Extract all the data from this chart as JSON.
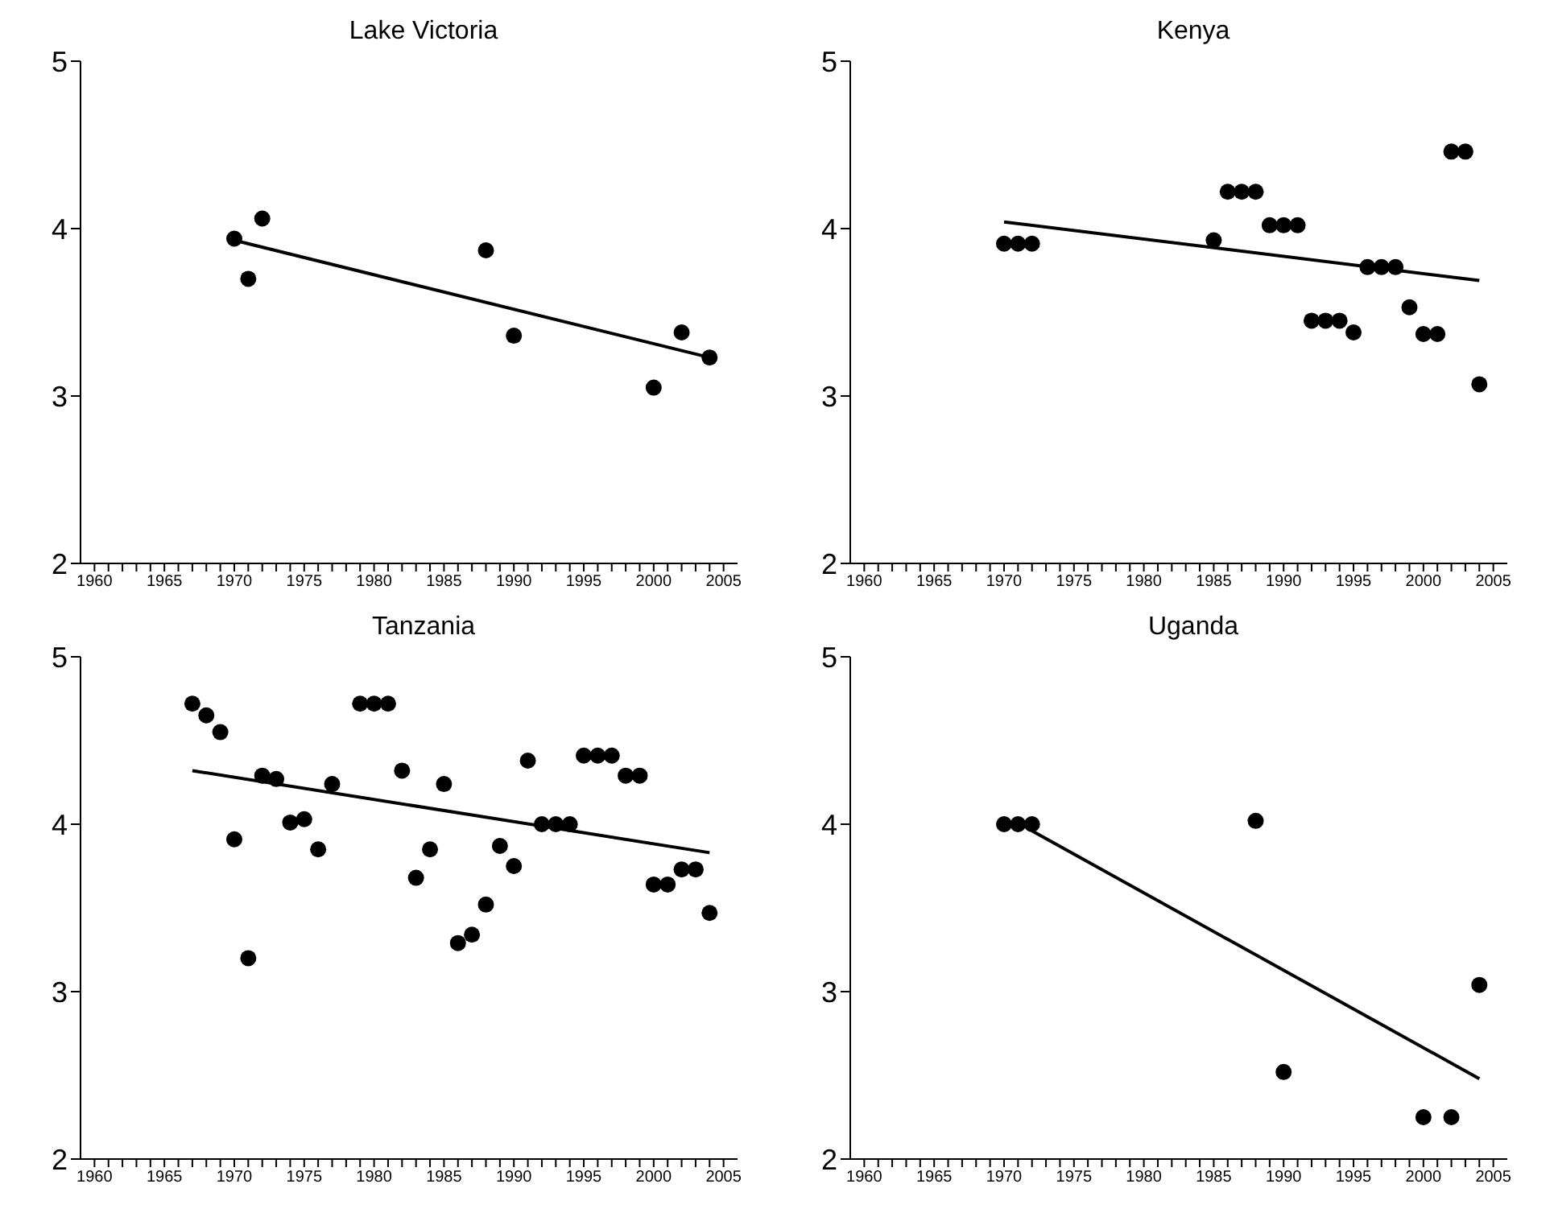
{
  "chart_data": [
    {
      "type": "scatter",
      "title": "Lake Victoria",
      "xlim": [
        1959,
        2006
      ],
      "ylim": [
        2,
        5
      ],
      "yticks": [
        2,
        3,
        4,
        5
      ],
      "xticks": [
        1960,
        {
          "value": 1961,
          "label": null
        },
        {
          "value": 1962,
          "label": null
        },
        {
          "value": 1963,
          "label": null
        },
        {
          "value": 1964,
          "label": null
        },
        1965,
        {
          "value": 1966,
          "label": null
        },
        {
          "value": 1967,
          "label": null
        },
        {
          "value": 1968,
          "label": null
        },
        {
          "value": 1969,
          "label": null
        },
        1970,
        {
          "value": 1971,
          "label": null
        },
        {
          "value": 1972,
          "label": null
        },
        {
          "value": 1973,
          "label": null
        },
        {
          "value": 1974,
          "label": null
        },
        1975,
        {
          "value": 1976,
          "label": null
        },
        {
          "value": 1977,
          "label": null
        },
        {
          "value": 1978,
          "label": null
        },
        {
          "value": 1979,
          "label": null
        },
        1980,
        {
          "value": 1981,
          "label": null
        },
        {
          "value": 1982,
          "label": null
        },
        {
          "value": 1983,
          "label": null
        },
        {
          "value": 1984,
          "label": null
        },
        1985,
        {
          "value": 1986,
          "label": null
        },
        {
          "value": 1987,
          "label": null
        },
        {
          "value": 1988,
          "label": null
        },
        {
          "value": 1989,
          "label": null
        },
        1990,
        {
          "value": 1991,
          "label": null
        },
        {
          "value": 1992,
          "label": null
        },
        {
          "value": 1993,
          "label": null
        },
        {
          "value": 1994,
          "label": null
        },
        1995,
        {
          "value": 1996,
          "label": null
        },
        {
          "value": 1997,
          "label": null
        },
        {
          "value": 1998,
          "label": null
        },
        {
          "value": 1999,
          "label": null
        },
        2000,
        {
          "value": 2001,
          "label": null
        },
        {
          "value": 2002,
          "label": null
        },
        {
          "value": 2003,
          "label": null
        },
        {
          "value": 2004,
          "label": null
        },
        2005
      ],
      "series": [
        {
          "type": "scatter",
          "marker": "circle",
          "color": "#000000",
          "x": [
            1970,
            1971,
            1972,
            1988,
            1990,
            2000,
            2002,
            2004
          ],
          "values": [
            3.94,
            3.7,
            4.06,
            3.87,
            3.36,
            3.05,
            3.38,
            3.23
          ]
        },
        {
          "type": "line",
          "color": "#000000",
          "x": [
            1970,
            2004
          ],
          "values": [
            3.93,
            3.23
          ]
        }
      ]
    },
    {
      "type": "scatter",
      "title": "Kenya",
      "xlim": [
        1959,
        2006
      ],
      "ylim": [
        2,
        5
      ],
      "yticks": [
        2,
        3,
        4,
        5
      ],
      "xticks": [
        1960,
        {
          "value": 1961,
          "label": null
        },
        {
          "value": 1962,
          "label": null
        },
        {
          "value": 1963,
          "label": null
        },
        {
          "value": 1964,
          "label": null
        },
        1965,
        {
          "value": 1966,
          "label": null
        },
        {
          "value": 1967,
          "label": null
        },
        {
          "value": 1968,
          "label": null
        },
        {
          "value": 1969,
          "label": null
        },
        1970,
        {
          "value": 1971,
          "label": null
        },
        {
          "value": 1972,
          "label": null
        },
        {
          "value": 1973,
          "label": null
        },
        {
          "value": 1974,
          "label": null
        },
        1975,
        {
          "value": 1976,
          "label": null
        },
        {
          "value": 1977,
          "label": null
        },
        {
          "value": 1978,
          "label": null
        },
        {
          "value": 1979,
          "label": null
        },
        1980,
        {
          "value": 1981,
          "label": null
        },
        {
          "value": 1982,
          "label": null
        },
        {
          "value": 1983,
          "label": null
        },
        {
          "value": 1984,
          "label": null
        },
        1985,
        {
          "value": 1986,
          "label": null
        },
        {
          "value": 1987,
          "label": null
        },
        {
          "value": 1988,
          "label": null
        },
        {
          "value": 1989,
          "label": null
        },
        1990,
        {
          "value": 1991,
          "label": null
        },
        {
          "value": 1992,
          "label": null
        },
        {
          "value": 1993,
          "label": null
        },
        {
          "value": 1994,
          "label": null
        },
        1995,
        {
          "value": 1996,
          "label": null
        },
        {
          "value": 1997,
          "label": null
        },
        {
          "value": 1998,
          "label": null
        },
        {
          "value": 1999,
          "label": null
        },
        2000,
        {
          "value": 2001,
          "label": null
        },
        {
          "value": 2002,
          "label": null
        },
        {
          "value": 2003,
          "label": null
        },
        {
          "value": 2004,
          "label": null
        },
        2005
      ],
      "series": [
        {
          "type": "scatter",
          "marker": "circle",
          "color": "#000000",
          "x": [
            1970,
            1971,
            1972,
            1985,
            1986,
            1987,
            1988,
            1989,
            1990,
            1991,
            1992,
            1993,
            1994,
            1995,
            1996,
            1997,
            1998,
            1999,
            2000,
            2001,
            2002,
            2003,
            2004
          ],
          "values": [
            3.91,
            3.91,
            3.91,
            3.93,
            4.22,
            4.22,
            4.22,
            4.02,
            4.02,
            4.02,
            3.45,
            3.45,
            3.45,
            3.38,
            3.77,
            3.77,
            3.77,
            3.53,
            3.37,
            3.37,
            4.46,
            4.46,
            3.07
          ]
        },
        {
          "type": "line",
          "color": "#000000",
          "x": [
            1970,
            2004
          ],
          "values": [
            4.04,
            3.69
          ]
        }
      ]
    },
    {
      "type": "scatter",
      "title": "Tanzania",
      "xlim": [
        1959,
        2006
      ],
      "ylim": [
        2,
        5
      ],
      "yticks": [
        2,
        3,
        4,
        5
      ],
      "xticks": [
        1960,
        {
          "value": 1961,
          "label": null
        },
        {
          "value": 1962,
          "label": null
        },
        {
          "value": 1963,
          "label": null
        },
        {
          "value": 1964,
          "label": null
        },
        1965,
        {
          "value": 1966,
          "label": null
        },
        {
          "value": 1967,
          "label": null
        },
        {
          "value": 1968,
          "label": null
        },
        {
          "value": 1969,
          "label": null
        },
        1970,
        {
          "value": 1971,
          "label": null
        },
        {
          "value": 1972,
          "label": null
        },
        {
          "value": 1973,
          "label": null
        },
        {
          "value": 1974,
          "label": null
        },
        1975,
        {
          "value": 1976,
          "label": null
        },
        {
          "value": 1977,
          "label": null
        },
        {
          "value": 1978,
          "label": null
        },
        {
          "value": 1979,
          "label": null
        },
        1980,
        {
          "value": 1981,
          "label": null
        },
        {
          "value": 1982,
          "label": null
        },
        {
          "value": 1983,
          "label": null
        },
        {
          "value": 1984,
          "label": null
        },
        1985,
        {
          "value": 1986,
          "label": null
        },
        {
          "value": 1987,
          "label": null
        },
        {
          "value": 1988,
          "label": null
        },
        {
          "value": 1989,
          "label": null
        },
        1990,
        {
          "value": 1991,
          "label": null
        },
        {
          "value": 1992,
          "label": null
        },
        {
          "value": 1993,
          "label": null
        },
        {
          "value": 1994,
          "label": null
        },
        1995,
        {
          "value": 1996,
          "label": null
        },
        {
          "value": 1997,
          "label": null
        },
        {
          "value": 1998,
          "label": null
        },
        {
          "value": 1999,
          "label": null
        },
        2000,
        {
          "value": 2001,
          "label": null
        },
        {
          "value": 2002,
          "label": null
        },
        {
          "value": 2003,
          "label": null
        },
        {
          "value": 2004,
          "label": null
        },
        2005
      ],
      "series": [
        {
          "type": "scatter",
          "marker": "circle",
          "color": "#000000",
          "x": [
            1967,
            1968,
            1969,
            1970,
            1971,
            1972,
            1973,
            1974,
            1975,
            1976,
            1977,
            1979,
            1980,
            1981,
            1982,
            1983,
            1984,
            1985,
            1986,
            1987,
            1988,
            1989,
            1990,
            1991,
            1992,
            1993,
            1994,
            1995,
            1996,
            1997,
            1998,
            1999,
            2000,
            2001,
            2002,
            2003,
            2004
          ],
          "values": [
            4.72,
            4.65,
            4.55,
            3.91,
            3.2,
            4.29,
            4.27,
            4.01,
            4.03,
            3.85,
            4.24,
            4.72,
            4.72,
            4.72,
            4.32,
            3.68,
            3.85,
            4.24,
            3.29,
            3.34,
            3.52,
            3.87,
            3.75,
            4.38,
            4.0,
            4.0,
            4.0,
            4.41,
            4.41,
            4.41,
            4.29,
            4.29,
            3.64,
            3.64,
            3.73,
            3.73,
            3.47
          ]
        },
        {
          "type": "line",
          "color": "#000000",
          "x": [
            1967,
            2004
          ],
          "values": [
            4.32,
            3.83
          ]
        }
      ]
    },
    {
      "type": "scatter",
      "title": "Uganda",
      "xlim": [
        1959,
        2006
      ],
      "ylim": [
        2,
        5
      ],
      "yticks": [
        2,
        3,
        4,
        5
      ],
      "xticks": [
        1960,
        {
          "value": 1961,
          "label": null
        },
        {
          "value": 1962,
          "label": null
        },
        {
          "value": 1963,
          "label": null
        },
        {
          "value": 1964,
          "label": null
        },
        1965,
        {
          "value": 1966,
          "label": null
        },
        {
          "value": 1967,
          "label": null
        },
        {
          "value": 1968,
          "label": null
        },
        {
          "value": 1969,
          "label": null
        },
        1970,
        {
          "value": 1971,
          "label": null
        },
        {
          "value": 1972,
          "label": null
        },
        {
          "value": 1973,
          "label": null
        },
        {
          "value": 1974,
          "label": null
        },
        1975,
        {
          "value": 1976,
          "label": null
        },
        {
          "value": 1977,
          "label": null
        },
        {
          "value": 1978,
          "label": null
        },
        {
          "value": 1979,
          "label": null
        },
        1980,
        {
          "value": 1981,
          "label": null
        },
        {
          "value": 1982,
          "label": null
        },
        {
          "value": 1983,
          "label": null
        },
        {
          "value": 1984,
          "label": null
        },
        1985,
        {
          "value": 1986,
          "label": null
        },
        {
          "value": 1987,
          "label": null
        },
        {
          "value": 1988,
          "label": null
        },
        {
          "value": 1989,
          "label": null
        },
        1990,
        {
          "value": 1991,
          "label": null
        },
        {
          "value": 1992,
          "label": null
        },
        {
          "value": 1993,
          "label": null
        },
        {
          "value": 1994,
          "label": null
        },
        1995,
        {
          "value": 1996,
          "label": null
        },
        {
          "value": 1997,
          "label": null
        },
        {
          "value": 1998,
          "label": null
        },
        {
          "value": 1999,
          "label": null
        },
        2000,
        {
          "value": 2001,
          "label": null
        },
        {
          "value": 2002,
          "label": null
        },
        {
          "value": 2003,
          "label": null
        },
        {
          "value": 2004,
          "label": null
        },
        2005
      ],
      "series": [
        {
          "type": "scatter",
          "marker": "circle",
          "color": "#000000",
          "x": [
            1970,
            1971,
            1972,
            1988,
            1990,
            2000,
            2002,
            2004
          ],
          "values": [
            4.0,
            4.0,
            4.0,
            4.02,
            2.52,
            2.25,
            2.25,
            3.04
          ]
        },
        {
          "type": "line",
          "color": "#000000",
          "x": [
            1972,
            2004
          ],
          "values": [
            3.96,
            2.48
          ]
        }
      ]
    }
  ]
}
